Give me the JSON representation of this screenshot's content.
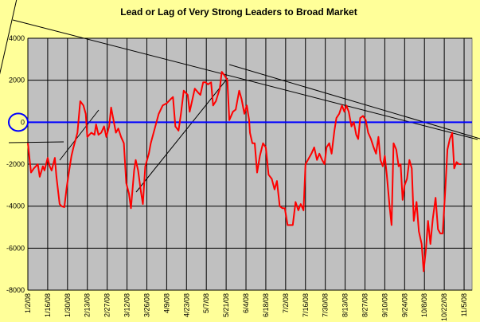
{
  "chart_data": {
    "type": "line",
    "title": "Lead or Lag of Very Strong Leaders to Broad Market",
    "xlabel": "",
    "ylabel": "",
    "ylim": [
      -8000,
      4000
    ],
    "yticks": [
      4000,
      2000,
      0,
      -2000,
      -4000,
      -6000,
      -8000
    ],
    "x_tick_labels": [
      "1/2/08",
      "1/16/08",
      "1/30/08",
      "2/13/08",
      "2/27/08",
      "3/12/08",
      "3/26/08",
      "4/9/08",
      "4/23/08",
      "5/7/08",
      "5/21/08",
      "6/4/08",
      "6/18/08",
      "7/2/08",
      "7/16/08",
      "7/30/08",
      "8/13/08",
      "8/27/08",
      "9/10/08",
      "9/24/08",
      "10/8/08",
      "10/22/08",
      "11/5/08"
    ],
    "grid": true,
    "colors": {
      "page_background": "#ffff99",
      "plot_background": "#c0c0c0",
      "series": "#ff0000",
      "zero_line": "#0000ff",
      "trendlines": "#000000"
    },
    "series": [
      {
        "values": [
          [
            0,
            -1000
          ],
          [
            0.8,
            -2400
          ],
          [
            1.5,
            -2200
          ],
          [
            2.5,
            -2000
          ],
          [
            3,
            -2600
          ],
          [
            3.8,
            -2100
          ],
          [
            4.2,
            -2300
          ],
          [
            5,
            -1700
          ],
          [
            5.5,
            -2100
          ],
          [
            6,
            -2300
          ],
          [
            6.8,
            -1700
          ],
          [
            7.2,
            -2600
          ],
          [
            8,
            -3900
          ],
          [
            8.5,
            -4000
          ],
          [
            9.2,
            -4050
          ],
          [
            9.8,
            -3100
          ],
          [
            10.5,
            -2200
          ],
          [
            11,
            -1600
          ],
          [
            11.5,
            -1200
          ],
          [
            12.5,
            -500
          ],
          [
            13.2,
            1000
          ],
          [
            14,
            800
          ],
          [
            14.6,
            400
          ],
          [
            15,
            -700
          ],
          [
            16,
            -500
          ],
          [
            16.8,
            -600
          ],
          [
            17.2,
            -100
          ],
          [
            17.8,
            -600
          ],
          [
            18.5,
            -500
          ],
          [
            19.2,
            -200
          ],
          [
            19.8,
            -700
          ],
          [
            20.5,
            -200
          ],
          [
            21,
            700
          ],
          [
            21.6,
            100
          ],
          [
            22.2,
            -500
          ],
          [
            22.8,
            -300
          ],
          [
            23.5,
            -700
          ],
          [
            24.2,
            -1000
          ],
          [
            24.8,
            -2900
          ],
          [
            25.5,
            -3400
          ],
          [
            26,
            -4100
          ],
          [
            26.8,
            -2300
          ],
          [
            27.2,
            -1800
          ],
          [
            27.8,
            -2300
          ],
          [
            28.5,
            -3300
          ],
          [
            29,
            -3900
          ],
          [
            29.6,
            -2100
          ],
          [
            30.5,
            -1500
          ],
          [
            31,
            -1000
          ],
          [
            32,
            -300
          ],
          [
            33,
            400
          ],
          [
            34,
            800
          ],
          [
            35,
            900
          ],
          [
            36,
            1100
          ],
          [
            36.6,
            1200
          ],
          [
            37.2,
            -200
          ],
          [
            38,
            -400
          ],
          [
            38.6,
            400
          ],
          [
            39.3,
            1500
          ],
          [
            40.3,
            1300
          ],
          [
            40.8,
            500
          ],
          [
            41.5,
            1100
          ],
          [
            42.1,
            1600
          ],
          [
            43,
            1400
          ],
          [
            43.5,
            1300
          ],
          [
            44.2,
            1900
          ],
          [
            44.8,
            1900
          ],
          [
            45.4,
            1800
          ],
          [
            46.2,
            1900
          ],
          [
            46.7,
            800
          ],
          [
            47.4,
            1000
          ],
          [
            48.4,
            1600
          ],
          [
            48.9,
            2400
          ],
          [
            49.7,
            2200
          ],
          [
            50.3,
            2000
          ],
          [
            50.8,
            100
          ],
          [
            51.7,
            500
          ],
          [
            52.4,
            600
          ],
          [
            53.3,
            1500
          ],
          [
            53.9,
            1100
          ],
          [
            54.6,
            400
          ],
          [
            55.2,
            800
          ],
          [
            55.8,
            100
          ],
          [
            56,
            -500
          ],
          [
            56.6,
            -1000
          ],
          [
            57.2,
            -1000
          ],
          [
            57.8,
            -2400
          ],
          [
            58.5,
            -1600
          ],
          [
            59.3,
            -1000
          ],
          [
            60,
            -1200
          ],
          [
            60.7,
            -2500
          ],
          [
            61.5,
            -2700
          ],
          [
            62.2,
            -3200
          ],
          [
            62.8,
            -2800
          ],
          [
            63.5,
            -4000
          ],
          [
            64.2,
            -4100
          ],
          [
            64.8,
            -4100
          ],
          [
            65.5,
            -4900
          ],
          [
            66.2,
            -4900
          ],
          [
            66.8,
            -4900
          ],
          [
            67.5,
            -3800
          ],
          [
            68.2,
            -4200
          ],
          [
            68.8,
            -3900
          ],
          [
            69.5,
            -4200
          ],
          [
            70,
            -2000
          ],
          [
            71.5,
            -1500
          ],
          [
            72.2,
            -1200
          ],
          [
            72.9,
            -1800
          ],
          [
            73.5,
            -1500
          ],
          [
            74.2,
            -1800
          ],
          [
            74.8,
            -2000
          ],
          [
            75.3,
            -1200
          ],
          [
            76,
            -1000
          ],
          [
            76.6,
            -1500
          ],
          [
            77.3,
            -400
          ],
          [
            77.8,
            200
          ],
          [
            78.5,
            400
          ],
          [
            79.2,
            800
          ],
          [
            79.8,
            500
          ],
          [
            80.3,
            800
          ],
          [
            80.9,
            500
          ],
          [
            81.6,
            -200
          ],
          [
            82.2,
            0
          ],
          [
            82.8,
            -600
          ],
          [
            83.3,
            -800
          ],
          [
            83.8,
            200
          ],
          [
            84.5,
            300
          ],
          [
            85.2,
            100
          ],
          [
            85.8,
            -500
          ],
          [
            86.5,
            -800
          ],
          [
            87.2,
            -1200
          ],
          [
            87.8,
            -1500
          ],
          [
            88.4,
            -700
          ],
          [
            88.9,
            -1800
          ],
          [
            89.5,
            -2100
          ],
          [
            90,
            -1600
          ],
          [
            90.5,
            -2500
          ],
          [
            91.2,
            -4000
          ],
          [
            91.7,
            -4900
          ],
          [
            92.2,
            -1000
          ],
          [
            92.9,
            -1300
          ],
          [
            93.5,
            -2100
          ],
          [
            94,
            -2000
          ],
          [
            94.5,
            -3700
          ],
          [
            95,
            -3000
          ],
          [
            95.6,
            -2700
          ],
          [
            96.2,
            -1800
          ],
          [
            96.8,
            -2200
          ],
          [
            97.3,
            -4700
          ],
          [
            98,
            -3800
          ],
          [
            98.6,
            -5200
          ],
          [
            99.3,
            -5800
          ],
          [
            99.8,
            -7100
          ],
          [
            100.4,
            -6000
          ],
          [
            100.9,
            -4700
          ],
          [
            101.5,
            -5800
          ],
          [
            102.1,
            -4600
          ],
          [
            102.8,
            -3600
          ],
          [
            103.4,
            -5100
          ],
          [
            104,
            -5300
          ],
          [
            104.6,
            -5300
          ],
          [
            105.2,
            -3400
          ],
          [
            105.8,
            -1300
          ],
          [
            106.4,
            -800
          ],
          [
            107,
            -500
          ],
          [
            107.5,
            -2200
          ],
          [
            108.1,
            -1900
          ],
          [
            108.7,
            -2000
          ],
          [
            109.3,
            -2000
          ]
        ]
      }
    ]
  }
}
